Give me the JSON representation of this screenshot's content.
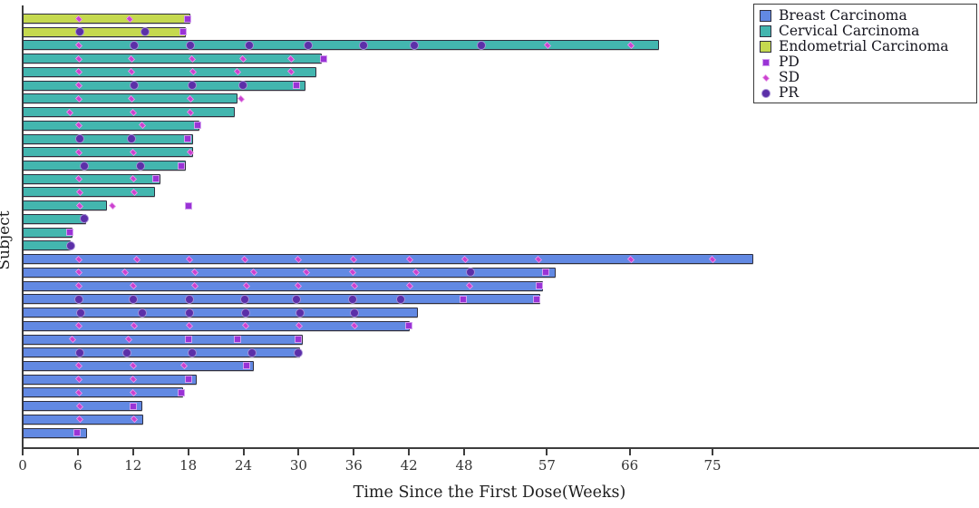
{
  "figure": {
    "background": "#ffffff",
    "axis_color": "#3d3d3d",
    "bar_border_color": "#2e2e3e"
  },
  "legend": {
    "groups": [
      {
        "label": "Breast Carcinoma",
        "color": "#6289e3"
      },
      {
        "label": "Cervical Carcinoma",
        "color": "#43b6af"
      },
      {
        "label": "Endometrial Carcinoma",
        "color": "#c5d94f"
      }
    ],
    "markers": [
      {
        "label": "PD",
        "shape": "square",
        "color": "#9a33d6"
      },
      {
        "label": "SD",
        "shape": "thin-diamond",
        "color": "#cb41cf"
      },
      {
        "label": "PR",
        "shape": "circle",
        "color": "#5b2fa8"
      }
    ]
  },
  "chart_data": {
    "type": "bar",
    "subtype": "swimmer-plot",
    "orientation": "horizontal",
    "title": "",
    "xlabel": "Time Since the First Dose(Weeks)",
    "ylabel": "Subject",
    "xlim": [
      0,
      103
    ],
    "xticks": [
      0,
      6,
      12,
      18,
      24,
      30,
      36,
      42,
      48,
      57,
      66,
      75
    ],
    "grid": false,
    "legend_position": "top-right",
    "marker_legend": {
      "PD": "square",
      "SD": "diamond",
      "PR": "circle"
    },
    "subjects": [
      {
        "group": "Endometrial Carcinoma",
        "bar_weeks": 18.2,
        "events": [
          {
            "week": 6.1,
            "type": "SD"
          },
          {
            "week": 11.6,
            "type": "SD"
          },
          {
            "week": 17.9,
            "type": "PD"
          }
        ]
      },
      {
        "group": "Endometrial Carcinoma",
        "bar_weeks": 17.7,
        "events": [
          {
            "week": 6.2,
            "type": "PR"
          },
          {
            "week": 13.3,
            "type": "PR"
          },
          {
            "week": 17.4,
            "type": "PD"
          }
        ]
      },
      {
        "group": "Cervical Carcinoma",
        "bar_weeks": 69.2,
        "events": [
          {
            "week": 6.1,
            "type": "SD"
          },
          {
            "week": 12.1,
            "type": "PR"
          },
          {
            "week": 18.2,
            "type": "PR"
          },
          {
            "week": 24.6,
            "type": "PR"
          },
          {
            "week": 31.0,
            "type": "PR"
          },
          {
            "week": 37.1,
            "type": "PR"
          },
          {
            "week": 42.6,
            "type": "PR"
          },
          {
            "week": 49.9,
            "type": "PR"
          },
          {
            "week": 57.1,
            "type": "SD"
          },
          {
            "week": 66.1,
            "type": "SD"
          }
        ]
      },
      {
        "group": "Cervical Carcinoma",
        "bar_weeks": 32.5,
        "events": [
          {
            "week": 6.1,
            "type": "SD"
          },
          {
            "week": 11.8,
            "type": "SD"
          },
          {
            "week": 18.4,
            "type": "SD"
          },
          {
            "week": 23.9,
            "type": "SD"
          },
          {
            "week": 29.2,
            "type": "SD"
          },
          {
            "week": 32.7,
            "type": "PD"
          }
        ]
      },
      {
        "group": "Cervical Carcinoma",
        "bar_weeks": 31.9,
        "events": [
          {
            "week": 6.1,
            "type": "SD"
          },
          {
            "week": 11.8,
            "type": "SD"
          },
          {
            "week": 18.5,
            "type": "SD"
          },
          {
            "week": 23.4,
            "type": "SD"
          },
          {
            "week": 29.2,
            "type": "SD"
          }
        ]
      },
      {
        "group": "Cervical Carcinoma",
        "bar_weeks": 30.7,
        "events": [
          {
            "week": 6.1,
            "type": "SD"
          },
          {
            "week": 12.1,
            "type": "PR"
          },
          {
            "week": 18.4,
            "type": "PR"
          },
          {
            "week": 23.9,
            "type": "PR"
          },
          {
            "week": 29.8,
            "type": "PD"
          }
        ]
      },
      {
        "group": "Cervical Carcinoma",
        "bar_weeks": 23.4,
        "events": [
          {
            "week": 6.1,
            "type": "SD"
          },
          {
            "week": 11.8,
            "type": "SD"
          },
          {
            "week": 18.2,
            "type": "SD"
          },
          {
            "week": 23.8,
            "type": "SD"
          }
        ]
      },
      {
        "group": "Cervical Carcinoma",
        "bar_weeks": 23.1,
        "events": [
          {
            "week": 5.1,
            "type": "SD"
          },
          {
            "week": 12.0,
            "type": "SD"
          },
          {
            "week": 18.2,
            "type": "SD"
          }
        ]
      },
      {
        "group": "Cervical Carcinoma",
        "bar_weeks": 19.2,
        "events": [
          {
            "week": 6.1,
            "type": "SD"
          },
          {
            "week": 13.0,
            "type": "SD"
          },
          {
            "week": 19.0,
            "type": "PD"
          }
        ]
      },
      {
        "group": "Cervical Carcinoma",
        "bar_weeks": 18.5,
        "events": [
          {
            "week": 6.2,
            "type": "PR"
          },
          {
            "week": 11.8,
            "type": "PR"
          },
          {
            "week": 17.9,
            "type": "PD"
          }
        ]
      },
      {
        "group": "Cervical Carcinoma",
        "bar_weeks": 18.5,
        "events": [
          {
            "week": 6.1,
            "type": "SD"
          },
          {
            "week": 12.0,
            "type": "SD"
          },
          {
            "week": 18.2,
            "type": "SD"
          }
        ]
      },
      {
        "group": "Cervical Carcinoma",
        "bar_weeks": 17.7,
        "events": [
          {
            "week": 6.7,
            "type": "PR"
          },
          {
            "week": 12.8,
            "type": "PR"
          },
          {
            "week": 17.2,
            "type": "PD"
          }
        ]
      },
      {
        "group": "Cervical Carcinoma",
        "bar_weeks": 15.0,
        "events": [
          {
            "week": 6.1,
            "type": "SD"
          },
          {
            "week": 12.0,
            "type": "SD"
          },
          {
            "week": 14.5,
            "type": "PD"
          }
        ]
      },
      {
        "group": "Cervical Carcinoma",
        "bar_weeks": 14.4,
        "events": [
          {
            "week": 6.2,
            "type": "SD"
          },
          {
            "week": 12.1,
            "type": "SD"
          }
        ]
      },
      {
        "group": "Cervical Carcinoma",
        "bar_weeks": 9.2,
        "events": [
          {
            "week": 6.2,
            "type": "SD"
          },
          {
            "week": 9.8,
            "type": "SD"
          },
          {
            "week": 18.0,
            "type": "PD"
          }
        ]
      },
      {
        "group": "Cervical Carcinoma",
        "bar_weeks": 6.9,
        "events": [
          {
            "week": 6.7,
            "type": "PR"
          }
        ]
      },
      {
        "group": "Cervical Carcinoma",
        "bar_weeks": 5.4,
        "events": [
          {
            "week": 5.1,
            "type": "PD"
          }
        ]
      },
      {
        "group": "Cervical Carcinoma",
        "bar_weeks": 5.2,
        "events": [
          {
            "week": 5.2,
            "type": "PR"
          }
        ]
      },
      {
        "group": "Breast Carcinoma",
        "bar_weeks": 79.4,
        "events": [
          {
            "week": 6.1,
            "type": "SD"
          },
          {
            "week": 12.4,
            "type": "SD"
          },
          {
            "week": 18.1,
            "type": "SD"
          },
          {
            "week": 24.1,
            "type": "SD"
          },
          {
            "week": 30.0,
            "type": "SD"
          },
          {
            "week": 36.0,
            "type": "SD"
          },
          {
            "week": 42.1,
            "type": "SD"
          },
          {
            "week": 48.1,
            "type": "SD"
          },
          {
            "week": 56.1,
            "type": "SD"
          },
          {
            "week": 66.1,
            "type": "SD"
          },
          {
            "week": 75.0,
            "type": "SD"
          }
        ]
      },
      {
        "group": "Breast Carcinoma",
        "bar_weeks": 57.9,
        "events": [
          {
            "week": 6.1,
            "type": "SD"
          },
          {
            "week": 11.1,
            "type": "SD"
          },
          {
            "week": 18.7,
            "type": "SD"
          },
          {
            "week": 25.1,
            "type": "SD"
          },
          {
            "week": 30.8,
            "type": "SD"
          },
          {
            "week": 35.9,
            "type": "SD"
          },
          {
            "week": 42.8,
            "type": "SD"
          },
          {
            "week": 48.7,
            "type": "PR"
          },
          {
            "week": 56.9,
            "type": "PD"
          }
        ]
      },
      {
        "group": "Breast Carcinoma",
        "bar_weeks": 56.6,
        "events": [
          {
            "week": 6.1,
            "type": "SD"
          },
          {
            "week": 12.0,
            "type": "SD"
          },
          {
            "week": 18.7,
            "type": "SD"
          },
          {
            "week": 24.3,
            "type": "SD"
          },
          {
            "week": 30.0,
            "type": "SD"
          },
          {
            "week": 36.1,
            "type": "SD"
          },
          {
            "week": 42.1,
            "type": "SD"
          },
          {
            "week": 48.6,
            "type": "SD"
          },
          {
            "week": 56.2,
            "type": "PD"
          }
        ]
      },
      {
        "group": "Breast Carcinoma",
        "bar_weeks": 56.3,
        "events": [
          {
            "week": 6.1,
            "type": "PR"
          },
          {
            "week": 12.0,
            "type": "PR"
          },
          {
            "week": 18.1,
            "type": "PR"
          },
          {
            "week": 24.1,
            "type": "PR"
          },
          {
            "week": 29.8,
            "type": "PR"
          },
          {
            "week": 35.9,
            "type": "PR"
          },
          {
            "week": 41.1,
            "type": "PR"
          },
          {
            "week": 47.9,
            "type": "PD"
          },
          {
            "week": 55.9,
            "type": "PD"
          }
        ]
      },
      {
        "group": "Breast Carcinoma",
        "bar_weeks": 43.0,
        "events": [
          {
            "week": 6.3,
            "type": "PR"
          },
          {
            "week": 13.0,
            "type": "PR"
          },
          {
            "week": 18.1,
            "type": "PR"
          },
          {
            "week": 24.2,
            "type": "PR"
          },
          {
            "week": 30.2,
            "type": "PR"
          },
          {
            "week": 36.1,
            "type": "PR"
          }
        ]
      },
      {
        "group": "Breast Carcinoma",
        "bar_weeks": 42.1,
        "events": [
          {
            "week": 6.1,
            "type": "SD"
          },
          {
            "week": 12.1,
            "type": "SD"
          },
          {
            "week": 18.1,
            "type": "SD"
          },
          {
            "week": 24.2,
            "type": "SD"
          },
          {
            "week": 30.1,
            "type": "SD"
          },
          {
            "week": 36.1,
            "type": "SD"
          },
          {
            "week": 42.0,
            "type": "PD"
          }
        ]
      },
      {
        "group": "Breast Carcinoma",
        "bar_weeks": 30.5,
        "events": [
          {
            "week": 5.4,
            "type": "SD"
          },
          {
            "week": 11.5,
            "type": "SD"
          },
          {
            "week": 18.0,
            "type": "PD"
          },
          {
            "week": 23.4,
            "type": "PD"
          },
          {
            "week": 30.0,
            "type": "PD"
          }
        ]
      },
      {
        "group": "Breast Carcinoma",
        "bar_weeks": 30.2,
        "events": [
          {
            "week": 6.2,
            "type": "PR"
          },
          {
            "week": 11.3,
            "type": "PR"
          },
          {
            "week": 18.4,
            "type": "PR"
          },
          {
            "week": 24.9,
            "type": "PR"
          },
          {
            "week": 30.0,
            "type": "PR"
          }
        ]
      },
      {
        "group": "Breast Carcinoma",
        "bar_weeks": 25.1,
        "events": [
          {
            "week": 6.1,
            "type": "SD"
          },
          {
            "week": 12.0,
            "type": "SD"
          },
          {
            "week": 17.5,
            "type": "SD"
          },
          {
            "week": 24.3,
            "type": "PD"
          }
        ]
      },
      {
        "group": "Breast Carcinoma",
        "bar_weeks": 18.9,
        "events": [
          {
            "week": 6.1,
            "type": "SD"
          },
          {
            "week": 12.0,
            "type": "SD"
          },
          {
            "week": 18.0,
            "type": "PD"
          }
        ]
      },
      {
        "group": "Breast Carcinoma",
        "bar_weeks": 17.4,
        "events": [
          {
            "week": 6.1,
            "type": "SD"
          },
          {
            "week": 12.0,
            "type": "SD"
          },
          {
            "week": 17.2,
            "type": "PD"
          }
        ]
      },
      {
        "group": "Breast Carcinoma",
        "bar_weeks": 13.0,
        "events": [
          {
            "week": 6.2,
            "type": "SD"
          },
          {
            "week": 12.0,
            "type": "PD"
          }
        ]
      },
      {
        "group": "Breast Carcinoma",
        "bar_weeks": 13.1,
        "events": [
          {
            "week": 6.2,
            "type": "SD"
          },
          {
            "week": 12.1,
            "type": "SD"
          }
        ]
      },
      {
        "group": "Breast Carcinoma",
        "bar_weeks": 7.0,
        "events": [
          {
            "week": 5.9,
            "type": "PD"
          }
        ]
      }
    ]
  }
}
